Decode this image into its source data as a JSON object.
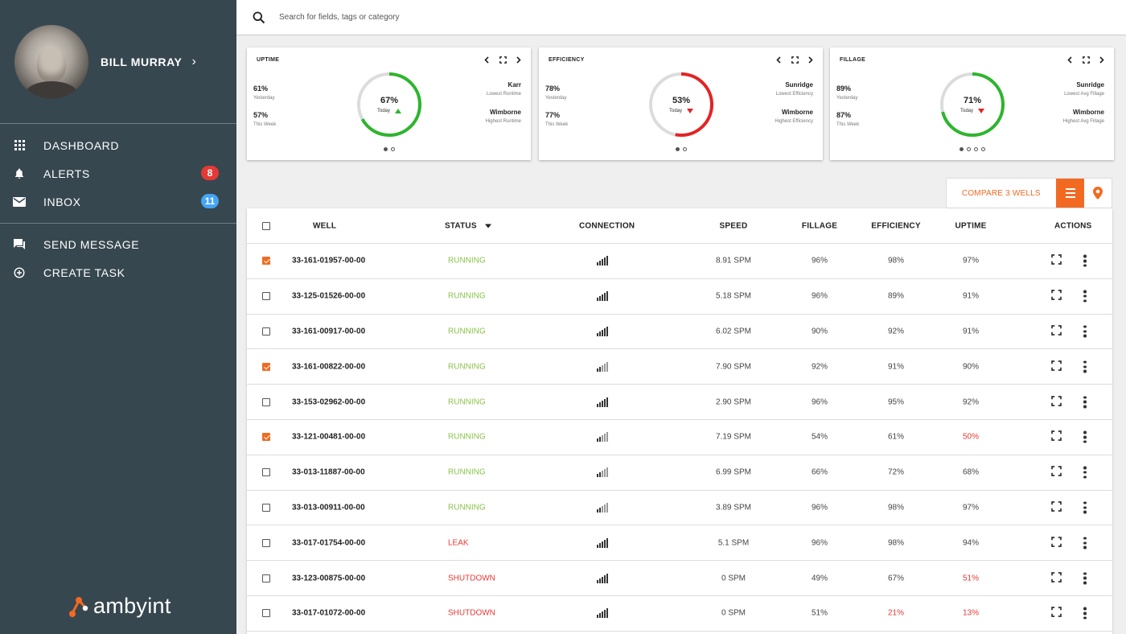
{
  "user": {
    "name": "BILL MURRAY"
  },
  "nav": {
    "primary": [
      {
        "label": "DASHBOARD",
        "icon": "grid-icon"
      },
      {
        "label": "ALERTS",
        "icon": "bell-icon",
        "badge": "8"
      },
      {
        "label": "INBOX",
        "icon": "mail-icon",
        "badge": "11"
      }
    ],
    "secondary": [
      {
        "label": "SEND MESSAGE",
        "icon": "chat-icon"
      },
      {
        "label": "CREATE TASK",
        "icon": "add-circle-icon"
      }
    ]
  },
  "brand": {
    "name": "ambyint",
    "accent": "#f26a22"
  },
  "search": {
    "placeholder": "Search for fields, tags or category"
  },
  "cards": [
    {
      "title": "UPTIME",
      "left": [
        {
          "value": "61%",
          "label": "Yesterday"
        },
        {
          "value": "57%",
          "label": "This Week"
        }
      ],
      "gauge": {
        "percent": "67%",
        "fraction": 0.67,
        "label": "Today",
        "trend": "up",
        "color": "#2db52d"
      },
      "right": [
        {
          "value": "Karr",
          "label": "Lowest Runtime"
        },
        {
          "value": "Wimborne",
          "label": "Highest Runtime"
        }
      ],
      "pages": 2,
      "active_page": 0
    },
    {
      "title": "EFFICIENCY",
      "left": [
        {
          "value": "78%",
          "label": "Yesterday"
        },
        {
          "value": "77%",
          "label": "This Week"
        }
      ],
      "gauge": {
        "percent": "53%",
        "fraction": 0.53,
        "label": "Today",
        "trend": "down",
        "color": "#e32323"
      },
      "right": [
        {
          "value": "Sunridge",
          "label": "Lowest Efficiency"
        },
        {
          "value": "Wimborne",
          "label": "Highest Efficiency"
        }
      ],
      "pages": 2,
      "active_page": 0
    },
    {
      "title": "FILLAGE",
      "left": [
        {
          "value": "89%",
          "label": "Yesterday"
        },
        {
          "value": "87%",
          "label": "This Week"
        }
      ],
      "gauge": {
        "percent": "71%",
        "fraction": 0.71,
        "label": "Today",
        "trend": "down",
        "color": "#2db52d"
      },
      "right": [
        {
          "value": "Sunridge",
          "label": "Lowest Avg Fillage"
        },
        {
          "value": "Wimborne",
          "label": "Highest Avg Fillage"
        }
      ],
      "pages": 4,
      "active_page": 0
    }
  ],
  "compare": {
    "label": "COMPARE 3 WELLS"
  },
  "table": {
    "headers": {
      "well": "WELL",
      "status": "STATUS",
      "connection": "CONNECTION",
      "speed": "SPEED",
      "fillage": "FILLAGE",
      "efficiency": "EFFICIENCY",
      "uptime": "UPTIME",
      "actions": "ACTIONS"
    },
    "rows": [
      {
        "checked": true,
        "well": "33-161-01957-00-00",
        "status": "RUNNING",
        "status_color": "green",
        "signal": "strong",
        "speed": "8.91 SPM",
        "fillage": "96%",
        "efficiency": "98%",
        "efficiency_color": "",
        "uptime": "97%",
        "uptime_color": ""
      },
      {
        "checked": false,
        "well": "33-125-01526-00-00",
        "status": "RUNNING",
        "status_color": "green",
        "signal": "strong",
        "speed": "5.18 SPM",
        "fillage": "96%",
        "efficiency": "89%",
        "efficiency_color": "",
        "uptime": "91%",
        "uptime_color": ""
      },
      {
        "checked": false,
        "well": "33-161-00917-00-00",
        "status": "RUNNING",
        "status_color": "green",
        "signal": "strong",
        "speed": "6.02 SPM",
        "fillage": "90%",
        "efficiency": "92%",
        "efficiency_color": "",
        "uptime": "91%",
        "uptime_color": ""
      },
      {
        "checked": true,
        "well": "33-161-00822-00-00",
        "status": "RUNNING",
        "status_color": "green",
        "signal": "weak",
        "speed": "7.90 SPM",
        "fillage": "92%",
        "efficiency": "91%",
        "efficiency_color": "",
        "uptime": "90%",
        "uptime_color": ""
      },
      {
        "checked": false,
        "well": "33-153-02962-00-00",
        "status": "RUNNING",
        "status_color": "green",
        "signal": "strong",
        "speed": "2.90 SPM",
        "fillage": "96%",
        "efficiency": "95%",
        "efficiency_color": "",
        "uptime": "92%",
        "uptime_color": ""
      },
      {
        "checked": true,
        "well": "33-121-00481-00-00",
        "status": "RUNNING",
        "status_color": "green",
        "signal": "weak",
        "speed": "7.19 SPM",
        "fillage": "54%",
        "efficiency": "61%",
        "efficiency_color": "",
        "uptime": "50%",
        "uptime_color": "red"
      },
      {
        "checked": false,
        "well": "33-013-11887-00-00",
        "status": "RUNNING",
        "status_color": "green",
        "signal": "weak",
        "speed": "6.99 SPM",
        "fillage": "66%",
        "efficiency": "72%",
        "efficiency_color": "",
        "uptime": "68%",
        "uptime_color": ""
      },
      {
        "checked": false,
        "well": "33-013-00911-00-00",
        "status": "RUNNING",
        "status_color": "green",
        "signal": "weak",
        "speed": "3.89 SPM",
        "fillage": "96%",
        "efficiency": "98%",
        "efficiency_color": "",
        "uptime": "97%",
        "uptime_color": ""
      },
      {
        "checked": false,
        "well": "33-017-01754-00-00",
        "status": "LEAK",
        "status_color": "red",
        "signal": "strong",
        "speed": "5.1 SPM",
        "fillage": "96%",
        "efficiency": "98%",
        "efficiency_color": "",
        "uptime": "94%",
        "uptime_color": ""
      },
      {
        "checked": false,
        "well": "33-123-00875-00-00",
        "status": "SHUTDOWN",
        "status_color": "red",
        "signal": "strong",
        "speed": "0 SPM",
        "fillage": "49%",
        "efficiency": "67%",
        "efficiency_color": "",
        "uptime": "51%",
        "uptime_color": "red"
      },
      {
        "checked": false,
        "well": "33-017-01072-00-00",
        "status": "SHUTDOWN",
        "status_color": "red",
        "signal": "strong",
        "speed": "0 SPM",
        "fillage": "51%",
        "efficiency": "21%",
        "efficiency_color": "red",
        "uptime": "13%",
        "uptime_color": "red"
      }
    ]
  }
}
